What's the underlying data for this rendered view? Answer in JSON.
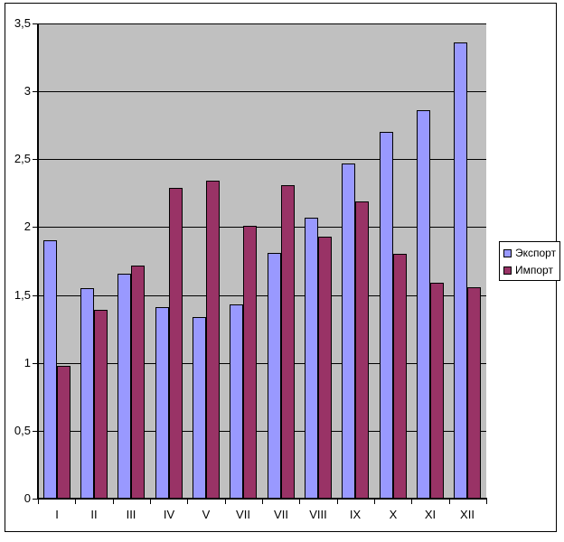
{
  "chart_data": {
    "type": "bar",
    "title": "",
    "xlabel": "",
    "ylabel": "",
    "categories": [
      "I",
      "II",
      "III",
      "IV",
      "V",
      "VII",
      "VII",
      "VIII",
      "IX",
      "X",
      "XI",
      "XII"
    ],
    "series": [
      {
        "name": "Экспорт",
        "color": "#9999FF",
        "values": [
          1.9,
          1.55,
          1.66,
          1.41,
          1.34,
          1.43,
          1.81,
          2.07,
          2.47,
          2.7,
          2.86,
          3.36
        ]
      },
      {
        "name": "Импорт",
        "color": "#993366",
        "values": [
          0.98,
          1.39,
          1.72,
          2.29,
          2.34,
          2.01,
          2.31,
          1.93,
          2.19,
          1.8,
          1.59,
          1.56
        ]
      }
    ],
    "ylim": [
      0,
      3.5
    ],
    "y_ticks": [
      {
        "value": 0.0,
        "label": "0"
      },
      {
        "value": 0.5,
        "label": "0,5"
      },
      {
        "value": 1.0,
        "label": "1"
      },
      {
        "value": 1.5,
        "label": "1,5"
      },
      {
        "value": 2.0,
        "label": "2"
      },
      {
        "value": 2.5,
        "label": "2,5"
      },
      {
        "value": 3.0,
        "label": "3"
      },
      {
        "value": 3.5,
        "label": "3,5"
      }
    ],
    "grid": true,
    "legend_position": "right",
    "colors": {
      "plot_background": "#C0C0C0",
      "chart_background": "#FFFFFF",
      "gridline": "#000000",
      "bar_border": "#000000",
      "axis": "#000000"
    }
  }
}
